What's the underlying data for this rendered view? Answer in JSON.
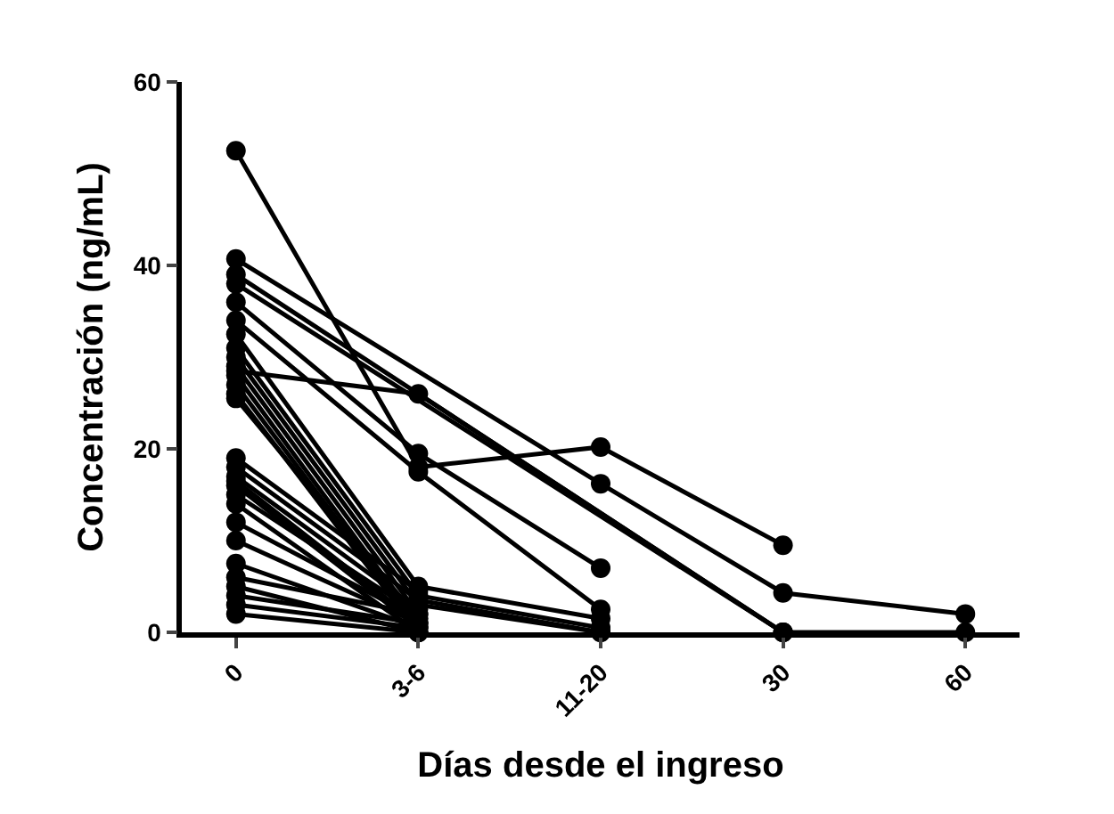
{
  "chart_data": {
    "type": "line",
    "xlabel": "Días desde el ingreso",
    "ylabel": "Concentración (ng/mL)",
    "categories": [
      "0",
      "3-6",
      "11-20",
      "30",
      "60"
    ],
    "ylim": [
      0,
      60
    ],
    "yticks": [
      0,
      20,
      40,
      60
    ],
    "grid": false,
    "marker": "circle",
    "line_style": "solid",
    "series": [
      {
        "color": "#000000",
        "values": [
          52.5,
          18,
          20.2,
          9.5,
          null
        ]
      },
      {
        "color": "#000000",
        "values": [
          40.7,
          null,
          16.2,
          4.3,
          2
        ]
      },
      {
        "color": "#000000",
        "values": [
          39,
          null,
          null,
          0,
          null
        ]
      },
      {
        "color": "#000000",
        "values": [
          38,
          null,
          null,
          0,
          0
        ]
      },
      {
        "color": "#000000",
        "values": [
          28.5,
          26,
          null,
          0,
          null
        ]
      },
      {
        "color": "#000000",
        "values": [
          36,
          19.5,
          7,
          null,
          null
        ]
      },
      {
        "color": "#000000",
        "values": [
          34,
          17.5,
          2.5,
          null,
          null
        ]
      },
      {
        "color": "#000000",
        "values": [
          32.5,
          5,
          1.5,
          null,
          null
        ]
      },
      {
        "color": "#000000",
        "values": [
          31,
          4,
          0.5,
          null,
          null
        ]
      },
      {
        "color": "#000000",
        "values": [
          30,
          3,
          0,
          null,
          null
        ]
      },
      {
        "color": "#000000",
        "values": [
          29,
          2,
          null,
          null,
          null
        ]
      },
      {
        "color": "#000000",
        "values": [
          28,
          1,
          null,
          null,
          null
        ]
      },
      {
        "color": "#000000",
        "values": [
          27,
          0.5,
          null,
          null,
          null
        ]
      },
      {
        "color": "#000000",
        "values": [
          26,
          0,
          null,
          null,
          null
        ]
      },
      {
        "color": "#000000",
        "values": [
          25.5,
          1.5,
          null,
          null,
          null
        ]
      },
      {
        "color": "#000000",
        "values": [
          19,
          4.5,
          null,
          null,
          null
        ]
      },
      {
        "color": "#000000",
        "values": [
          18,
          3.5,
          0,
          null,
          null
        ]
      },
      {
        "color": "#000000",
        "values": [
          17,
          2.5,
          null,
          null,
          null
        ]
      },
      {
        "color": "#000000",
        "values": [
          16.5,
          1,
          null,
          null,
          null
        ]
      },
      {
        "color": "#000000",
        "values": [
          16,
          0.5,
          null,
          null,
          null
        ]
      },
      {
        "color": "#000000",
        "values": [
          15,
          2,
          null,
          null,
          null
        ]
      },
      {
        "color": "#000000",
        "values": [
          14,
          0,
          null,
          null,
          null
        ]
      },
      {
        "color": "#000000",
        "values": [
          12,
          1.5,
          null,
          null,
          null
        ]
      },
      {
        "color": "#000000",
        "values": [
          10,
          1,
          null,
          null,
          null
        ]
      },
      {
        "color": "#000000",
        "values": [
          7.5,
          0.5,
          null,
          null,
          null
        ]
      },
      {
        "color": "#000000",
        "values": [
          6,
          2,
          null,
          null,
          null
        ]
      },
      {
        "color": "#000000",
        "values": [
          5,
          0,
          null,
          null,
          null
        ]
      },
      {
        "color": "#000000",
        "values": [
          4,
          1,
          null,
          null,
          null
        ]
      },
      {
        "color": "#000000",
        "values": [
          3,
          0.5,
          null,
          null,
          null
        ]
      },
      {
        "color": "#000000",
        "values": [
          2,
          0,
          null,
          null,
          null
        ]
      }
    ]
  }
}
